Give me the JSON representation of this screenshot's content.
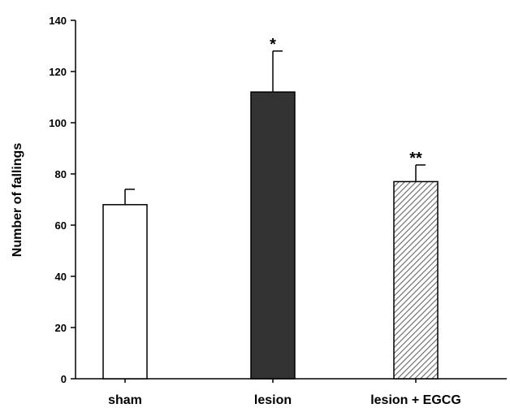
{
  "chart_data": {
    "type": "bar",
    "title": "",
    "xlabel": "",
    "ylabel": "Number of fallings",
    "categories": [
      "sham",
      "lesion",
      "lesion + EGCG"
    ],
    "values": [
      68,
      112,
      77
    ],
    "errors": [
      6,
      16,
      6.5
    ],
    "significance": [
      "",
      "*",
      "**"
    ],
    "fills": [
      "white",
      "dark",
      "hatched"
    ],
    "ylim": [
      0,
      140
    ],
    "yticks": [
      0,
      20,
      40,
      60,
      80,
      100,
      120,
      140
    ],
    "grid": false,
    "legend": "none",
    "colors": {
      "dark": "#333333",
      "outline": "#000000",
      "hatch": "#666666"
    }
  }
}
